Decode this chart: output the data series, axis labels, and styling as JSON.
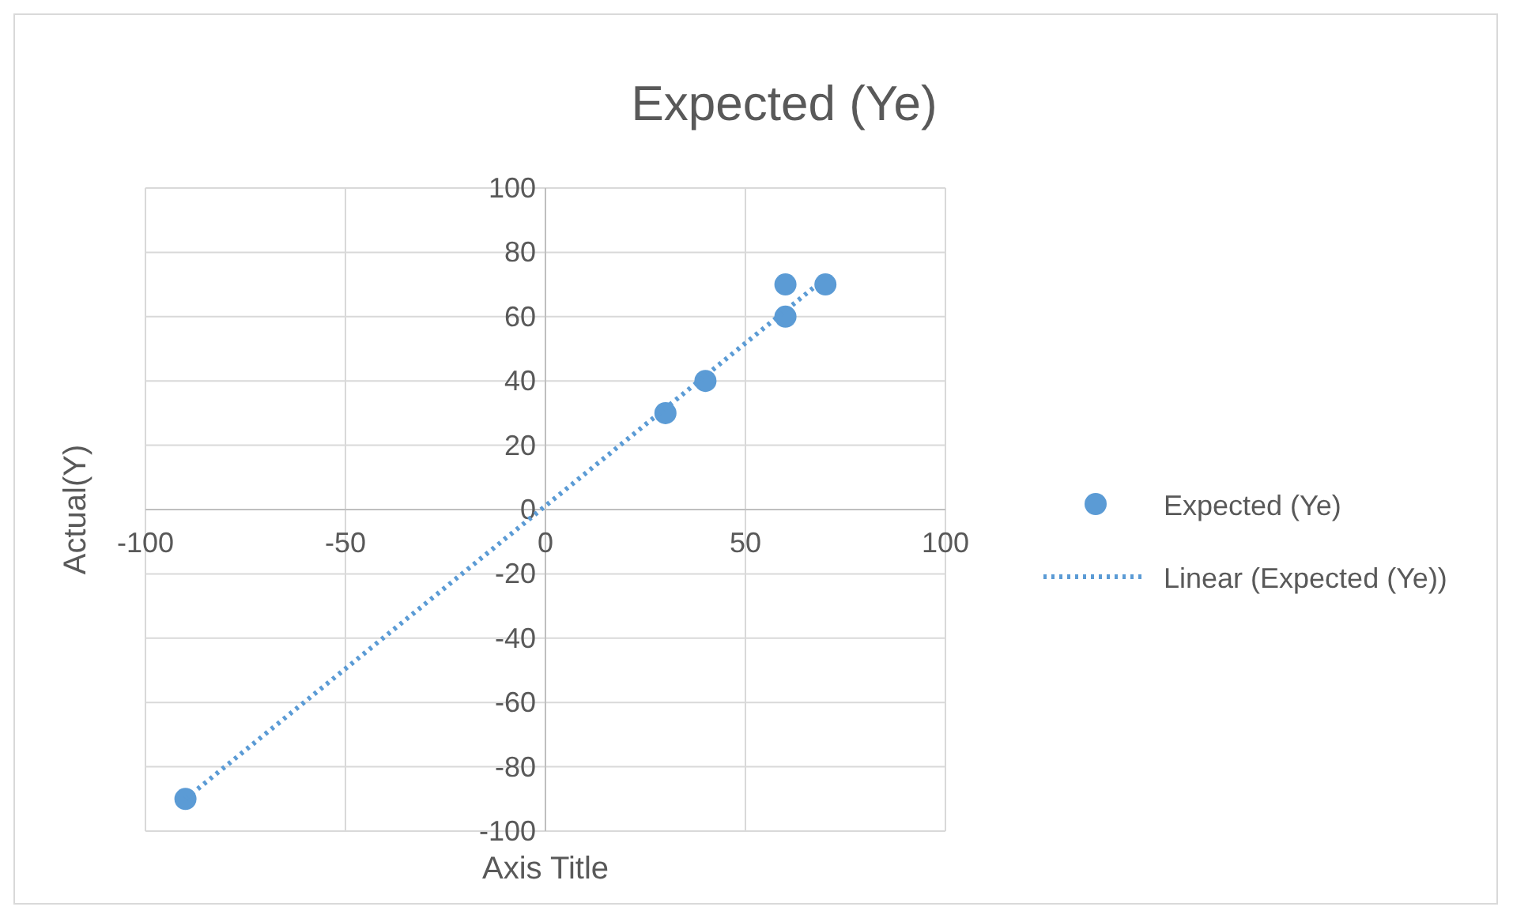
{
  "chart_data": {
    "type": "scatter",
    "title": "Expected (Ye)",
    "xlabel": "Axis Title",
    "ylabel": "Actual(Y)",
    "xlim": [
      -100,
      100
    ],
    "xticks": [
      -100,
      -50,
      0,
      50,
      100
    ],
    "ylim": [
      -100,
      100
    ],
    "yticks": [
      -100,
      -80,
      -60,
      -40,
      -20,
      0,
      20,
      40,
      60,
      80,
      100
    ],
    "grid": true,
    "legend": "right",
    "series": [
      {
        "name": "Expected (Ye)",
        "color": "#5b9bd5",
        "marker": "circle",
        "x": [
          -90,
          30,
          40,
          60,
          60,
          70
        ],
        "values": [
          -90,
          30,
          40,
          70,
          60,
          70
        ]
      },
      {
        "name": "Linear (Expected (Ye))",
        "type": "line",
        "color": "#5b9bd5",
        "line_style": "dotted",
        "marker": "none",
        "x": [
          -90,
          70
        ],
        "values": [
          -90,
          72
        ]
      }
    ]
  }
}
